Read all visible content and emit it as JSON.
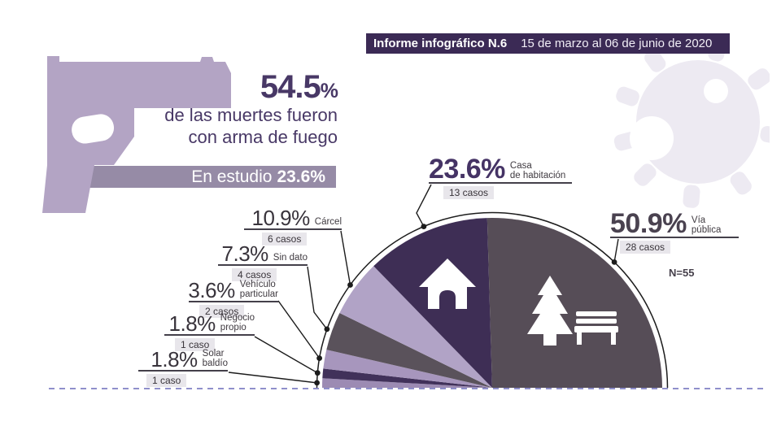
{
  "header": {
    "report_label": "Informe infográfico N.6",
    "date_range": "15 de marzo al 06 de junio de 2020"
  },
  "headline": {
    "percent_value": "54.5",
    "percent_sign": "%",
    "line1": "de las muertes fueron",
    "line2": "con arma de fuego"
  },
  "study": {
    "label": "En estudio",
    "value": "23.6%"
  },
  "chart_data": {
    "type": "pie",
    "shape": "semicircle",
    "n_label": "N=55",
    "total_n": 55,
    "unit": "casos",
    "segments": [
      {
        "id": "via",
        "label": "Vía pública",
        "label_lines": [
          "Vía",
          "pública"
        ],
        "percent": 50.9,
        "percent_display": "50.9%",
        "cases": 28,
        "cases_label": "28 casos",
        "color": "#564d57"
      },
      {
        "id": "casa",
        "label": "Casa de habitación",
        "label_lines": [
          "Casa",
          "de habitación"
        ],
        "percent": 23.6,
        "percent_display": "23.6%",
        "cases": 13,
        "cases_label": "13 casos",
        "color": "#3e2e55"
      },
      {
        "id": "carcel",
        "label": "Cárcel",
        "label_lines": [
          "Cárcel"
        ],
        "percent": 10.9,
        "percent_display": "10.9%",
        "cases": 6,
        "cases_label": "6 casos",
        "color": "#b1a3c6"
      },
      {
        "id": "sindato",
        "label": "Sin dato",
        "label_lines": [
          "Sin dato"
        ],
        "percent": 7.3,
        "percent_display": "7.3%",
        "cases": 4,
        "cases_label": "4 casos",
        "color": "#5a525b"
      },
      {
        "id": "vehiculo",
        "label": "Vehículo particular",
        "label_lines": [
          "Vehículo",
          "particular"
        ],
        "percent": 3.6,
        "percent_display": "3.6%",
        "cases": 2,
        "cases_label": "2 casos",
        "color": "#a796bd"
      },
      {
        "id": "negocio",
        "label": "Negocio propio",
        "label_lines": [
          "Negocio",
          "propio"
        ],
        "percent": 1.8,
        "percent_display": "1.8%",
        "cases": 1,
        "cases_label": "1 caso",
        "color": "#41315a"
      },
      {
        "id": "solar",
        "label": "Solar baldío",
        "label_lines": [
          "Solar",
          "baldío"
        ],
        "percent": 1.8,
        "percent_display": "1.8%",
        "cases": 1,
        "cases_label": "1 caso",
        "color": "#9c8bb3"
      }
    ]
  },
  "icons": {
    "weapon": "handgun-icon",
    "background": "coronavirus-icon",
    "casa": "house-icon",
    "via": [
      "pine-tree-icon",
      "park-bench-icon"
    ]
  },
  "colors": {
    "banner_bg": "#3b2a55",
    "band_bg": "#968ba6",
    "gun": "#b3a4c4",
    "virus": "#edeaf2",
    "headline_text": "#483866",
    "dashed_line": "#8f8fcb",
    "outline": "#1c1c1c",
    "chip_bg": "#e8e6eb"
  }
}
